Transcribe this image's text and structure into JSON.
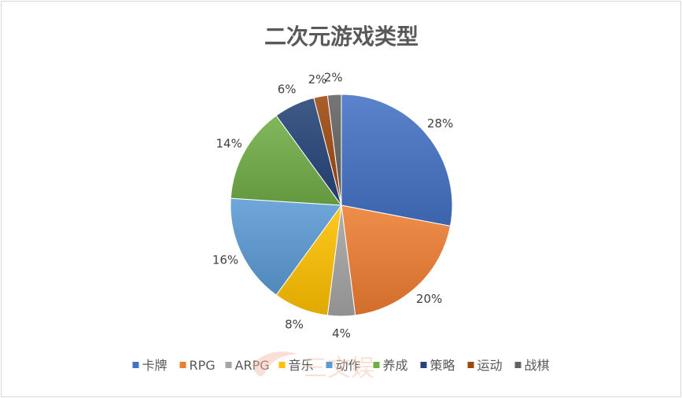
{
  "chart_data": {
    "type": "pie",
    "title": "二次元游戏类型",
    "categories": [
      "卡牌",
      "RPG",
      "ARPG",
      "音乐",
      "动作",
      "养成",
      "策略",
      "运动",
      "战棋"
    ],
    "values": [
      28,
      20,
      4,
      8,
      16,
      14,
      6,
      2,
      2
    ],
    "unit": "%",
    "colors": [
      "#4472c4",
      "#ed7d31",
      "#a5a5a5",
      "#ffc000",
      "#5b9bd5",
      "#70ad47",
      "#264478",
      "#9e480e",
      "#636363"
    ],
    "legend_position": "bottom"
  },
  "watermark": {
    "text": "三文娱"
  }
}
